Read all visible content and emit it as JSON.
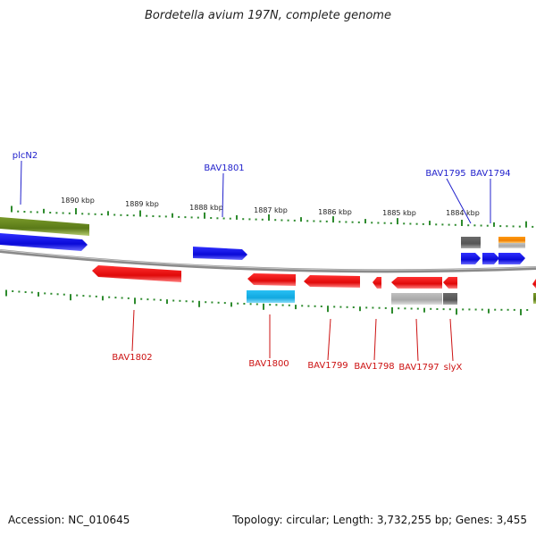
{
  "title": "Bordetella avium 197N, complete genome",
  "footer": {
    "accession": "Accession: NC_010645",
    "summary": "Topology: circular; Length: 3,732,255 bp; Genes: 3,455"
  },
  "scale_labels": [
    "1890 kbp",
    "1889 kbp",
    "1888 kbp",
    "1887 kbp",
    "1886 kbp",
    "1885 kbp",
    "1884 kbp"
  ],
  "genes_top": [
    {
      "name": "plcN2",
      "color": "#2222cc"
    },
    {
      "name": "BAV1801",
      "color": "#2222cc"
    },
    {
      "name": "BAV1795",
      "color": "#2222cc"
    },
    {
      "name": "BAV1794",
      "color": "#2222cc"
    }
  ],
  "genes_bottom": [
    {
      "name": "BAV1802",
      "color": "#cc1111"
    },
    {
      "name": "BAV1800",
      "color": "#cc1111"
    },
    {
      "name": "BAV1799",
      "color": "#cc1111"
    },
    {
      "name": "BAV1798",
      "color": "#cc1111"
    },
    {
      "name": "BAV1797",
      "color": "#cc1111"
    },
    {
      "name": "slyX",
      "color": "#cc1111"
    }
  ],
  "colors": {
    "forward_gene": "#1010e0",
    "reverse_gene": "#ee1111",
    "rna_olive": "#6b8e23",
    "cyan_feature": "#1ab2e8",
    "orange_feature": "#f08c00",
    "gray_feature": "#9a9a9a",
    "tick_green": "#2e8b2e",
    "backbone": "#888888"
  }
}
